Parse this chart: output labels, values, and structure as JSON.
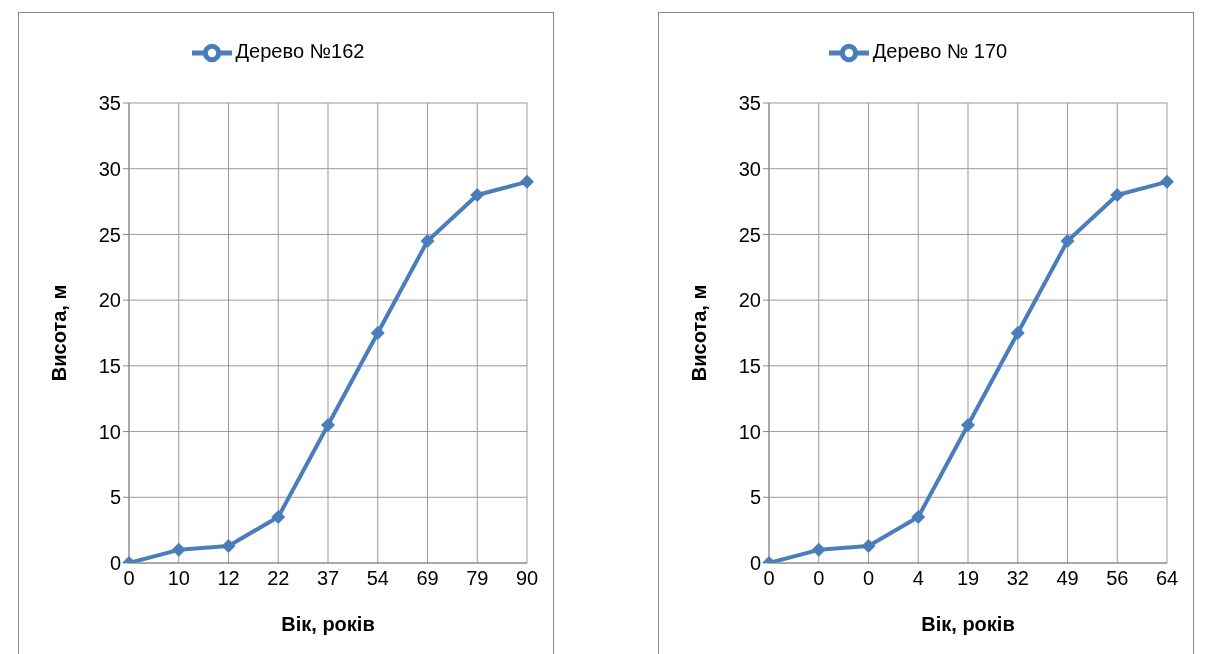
{
  "chart_data": [
    {
      "type": "line",
      "categories": [
        "0",
        "10",
        "12",
        "22",
        "37",
        "54",
        "69",
        "79",
        "90"
      ],
      "series": [
        {
          "name": "Дерево №162",
          "color": "#4a7ebb",
          "values": [
            0,
            1,
            1.3,
            3.5,
            10.5,
            17.5,
            24.5,
            28,
            29
          ]
        }
      ],
      "xlabel": "Вік, років",
      "ylabel": "Висота, м",
      "ylim": [
        0,
        35
      ],
      "yticks": [
        0,
        5,
        10,
        15,
        20,
        25,
        30,
        35
      ],
      "grid": true,
      "legend": "top",
      "marker": "diamond",
      "line_style": "solid"
    },
    {
      "type": "line",
      "categories": [
        "0",
        "0",
        "0",
        "4",
        "19",
        "32",
        "49",
        "56",
        "64"
      ],
      "series": [
        {
          "name": "Дерево № 170",
          "color": "#4a7ebb",
          "values": [
            0,
            1,
            1.3,
            3.5,
            10.5,
            17.5,
            24.5,
            28,
            29
          ]
        }
      ],
      "xlabel": "Вік, років",
      "ylabel": "Висота, м",
      "ylim": [
        0,
        35
      ],
      "yticks": [
        0,
        5,
        10,
        15,
        20,
        25,
        30,
        35
      ],
      "grid": true,
      "legend": "top",
      "marker": "diamond",
      "line_style": "solid"
    }
  ]
}
